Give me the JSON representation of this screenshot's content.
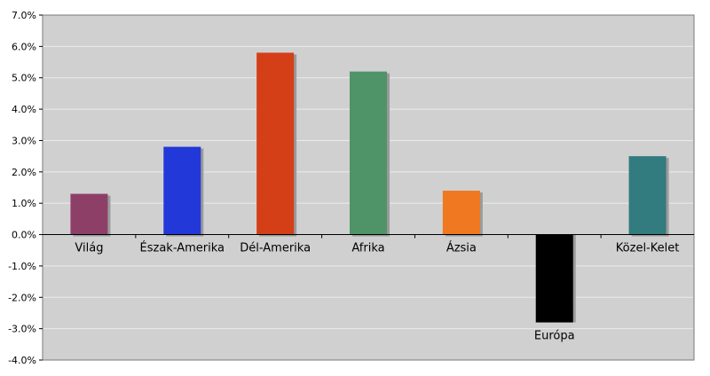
{
  "chart_data": {
    "type": "bar",
    "categories": [
      "Világ",
      "Észak-Amerika",
      "Dél-Amerika",
      "Afrika",
      "Ázsia",
      "Európa",
      "Közel-Kelet"
    ],
    "values": [
      1.3,
      2.8,
      5.8,
      5.2,
      1.4,
      -2.8,
      2.5
    ],
    "colors": [
      "#8e3f68",
      "#2338d8",
      "#d43f18",
      "#4e9468",
      "#f07820",
      "#000000",
      "#327b7e"
    ],
    "ylim": [
      -4.0,
      7.0
    ],
    "yticks": [
      -4,
      -3,
      -2,
      -1,
      0,
      1,
      2,
      3,
      4,
      5,
      6,
      7
    ],
    "ytick_labels": [
      "-4.0%",
      "-3.0%",
      "-2.0%",
      "-1.0%",
      "0.0%",
      "1.0%",
      "2.0%",
      "3.0%",
      "4.0%",
      "5.0%",
      "6.0%",
      "7.0%"
    ],
    "grid": true,
    "background": "#d0d0d0",
    "gridline_color": "#ececec",
    "title": "",
    "xlabel": "",
    "ylabel": ""
  }
}
